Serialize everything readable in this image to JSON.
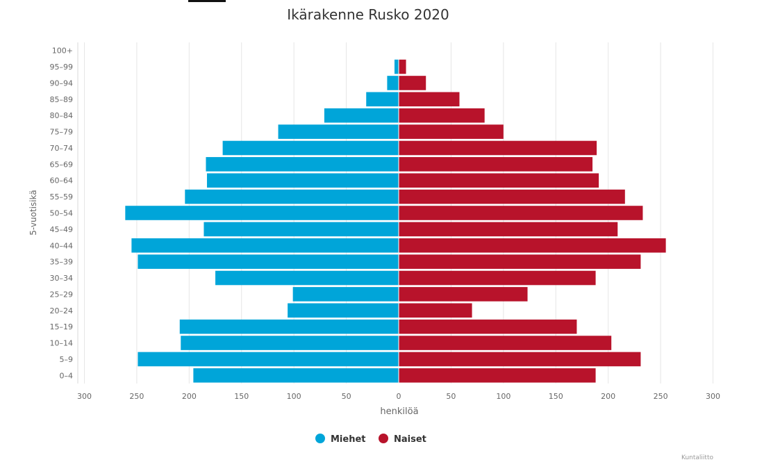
{
  "chart_data": {
    "type": "bar",
    "title": "Ikärakenne Rusko 2020",
    "xlabel": "henkilöä",
    "ylabel": "5-vuotisikä",
    "credit": "Kuntaliitto",
    "xlim": [
      -300,
      300
    ],
    "x_ticks": [
      -300,
      -250,
      -200,
      -150,
      -100,
      -50,
      0,
      50,
      100,
      150,
      200,
      250,
      300
    ],
    "x_tick_labels": [
      "300",
      "250",
      "200",
      "150",
      "100",
      "50",
      "0",
      "50",
      "100",
      "150",
      "200",
      "250",
      "300"
    ],
    "categories": [
      "0–4",
      "5–9",
      "10–14",
      "15–19",
      "20–24",
      "25–29",
      "30–34",
      "35–39",
      "40–44",
      "45–49",
      "50–54",
      "55–59",
      "60–64",
      "65–69",
      "70–74",
      "75–79",
      "80–84",
      "85–89",
      "90–94",
      "95–99",
      "100+"
    ],
    "series": [
      {
        "name": "Miehet",
        "color": "#00a5d9",
        "values": [
          196,
          249,
          208,
          209,
          106,
          101,
          175,
          249,
          255,
          186,
          261,
          204,
          183,
          184,
          168,
          115,
          71,
          31,
          11,
          4,
          0
        ]
      },
      {
        "name": "Naiset",
        "color": "#b8132b",
        "values": [
          188,
          231,
          203,
          170,
          70,
          123,
          188,
          231,
          255,
          209,
          233,
          216,
          191,
          185,
          189,
          100,
          82,
          58,
          26,
          7,
          0
        ]
      }
    ],
    "grid": true,
    "legend_position": "bottom"
  }
}
